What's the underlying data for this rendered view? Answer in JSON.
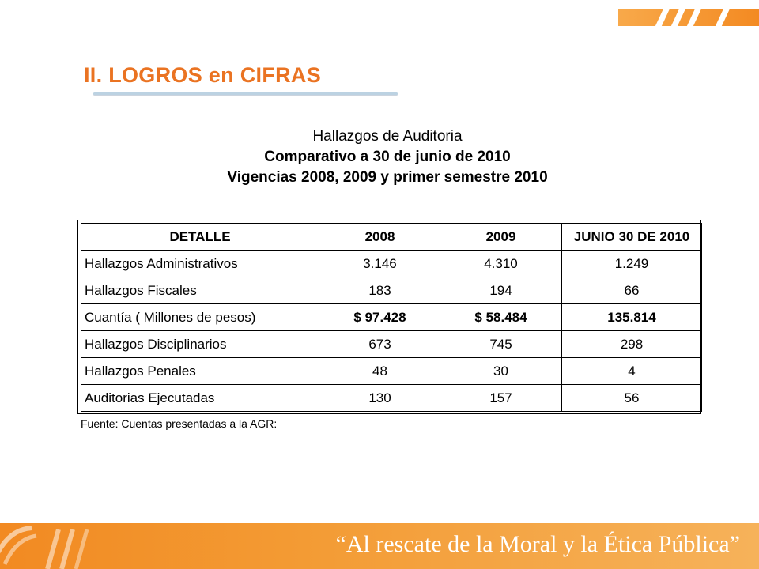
{
  "slide": {
    "title": "II. LOGROS en CIFRAS"
  },
  "table_heading": {
    "line1": "Hallazgos de Auditoria",
    "line2": "Comparativo a 30 de junio de 2010",
    "line3": "Vigencias 2008, 2009 y primer semestre 2010"
  },
  "table": {
    "headers": {
      "detalle": "DETALLE",
      "y2008": "2008",
      "y2009": "2009",
      "junio": "JUNIO 30 DE 2010"
    },
    "rows": [
      {
        "label": "Hallazgos Administrativos",
        "y2008": "3.146",
        "y2009": "4.310",
        "junio": "1.249"
      },
      {
        "label": "Hallazgos Fiscales",
        "y2008": "183",
        "y2009": "194",
        "junio": "66"
      },
      {
        "label": "Cuantía ( Millones de pesos)",
        "y2008": "$ 97.428",
        "y2009": "$ 58.484",
        "junio": "135.814"
      },
      {
        "label": "Hallazgos Disciplinarios",
        "y2008": "673",
        "y2009": "745",
        "junio": "298"
      },
      {
        "label": "Hallazgos Penales",
        "y2008": "48",
        "y2009": "30",
        "junio": "4"
      },
      {
        "label": "Auditorias Ejecutadas",
        "y2008": "130",
        "y2009": "157",
        "junio": "56"
      }
    ]
  },
  "source_note": "Fuente: Cuentas presentadas a la AGR:",
  "banner": {
    "motto": "“Al rescate de la Moral y la Ética Pública”"
  },
  "colors": {
    "accent_orange": "#ea7322",
    "banner_orange": "#f28a22",
    "title_rule": "#bcd2e2"
  }
}
